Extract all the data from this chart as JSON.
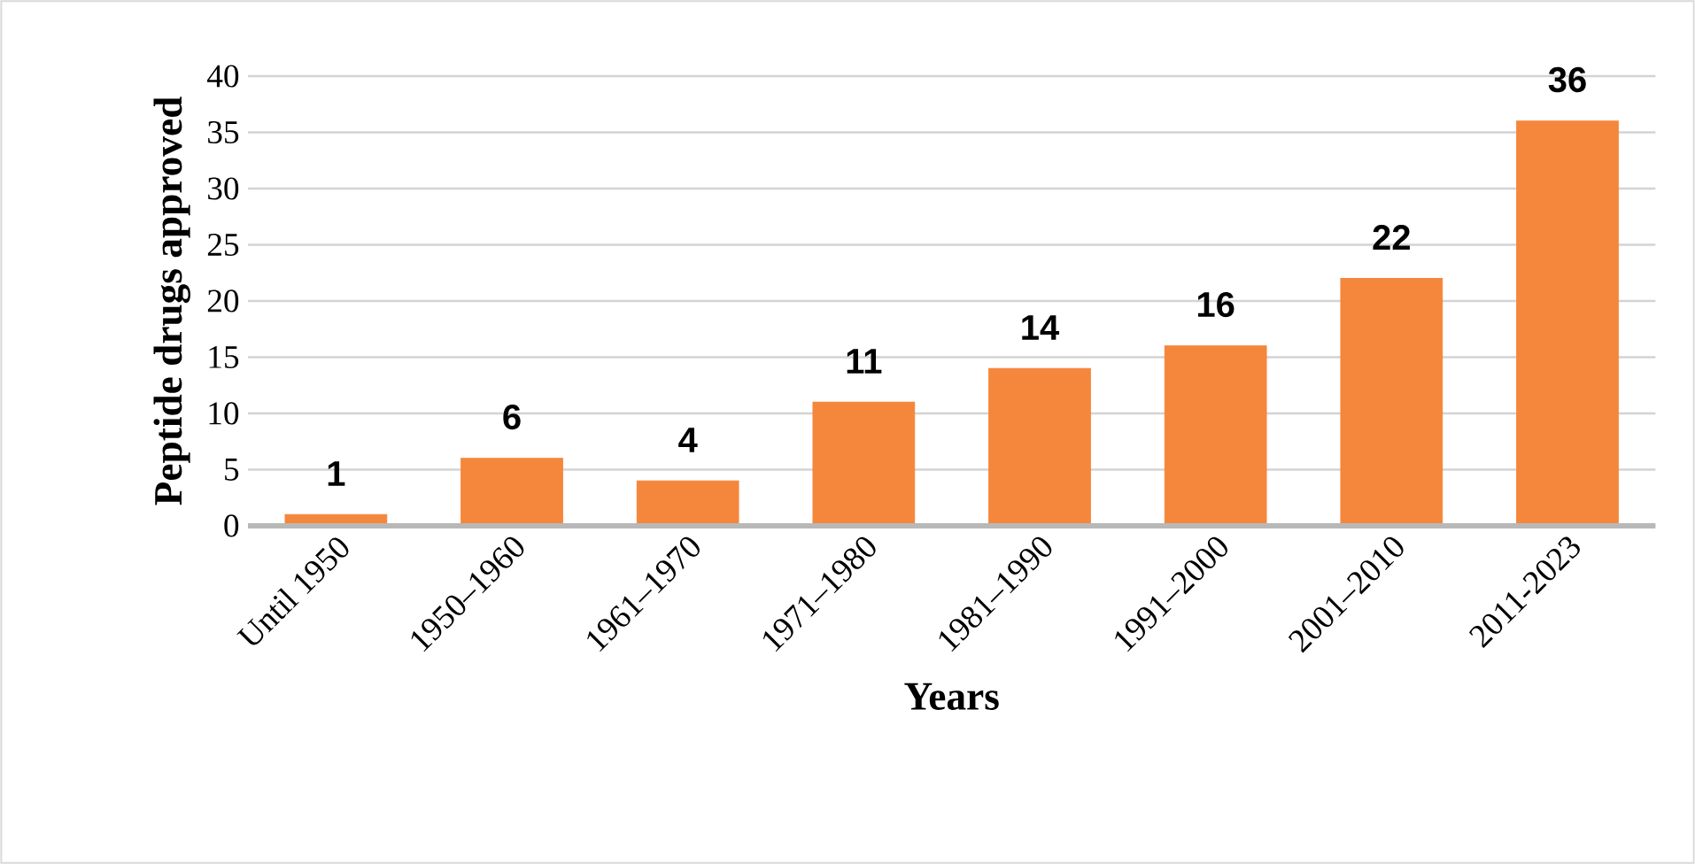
{
  "chart_data": {
    "type": "bar",
    "xlabel": "Years",
    "ylabel": "Peptide drugs approved",
    "categories": [
      "Until 1950",
      "1950–1960",
      "1961–1970",
      "1971–1980",
      "1981–1990",
      "1991–2000",
      "2001–2010",
      "2011-2023"
    ],
    "values": [
      1,
      6,
      4,
      11,
      14,
      16,
      22,
      36
    ],
    "value_labels": [
      "1",
      "6",
      "4",
      "11",
      "14",
      "16",
      "22",
      "36"
    ],
    "color": "#f5873c",
    "ylim": [
      0,
      40
    ],
    "yticks": [
      0,
      5,
      10,
      15,
      20,
      25,
      30,
      35,
      40
    ],
    "grid": "y"
  }
}
